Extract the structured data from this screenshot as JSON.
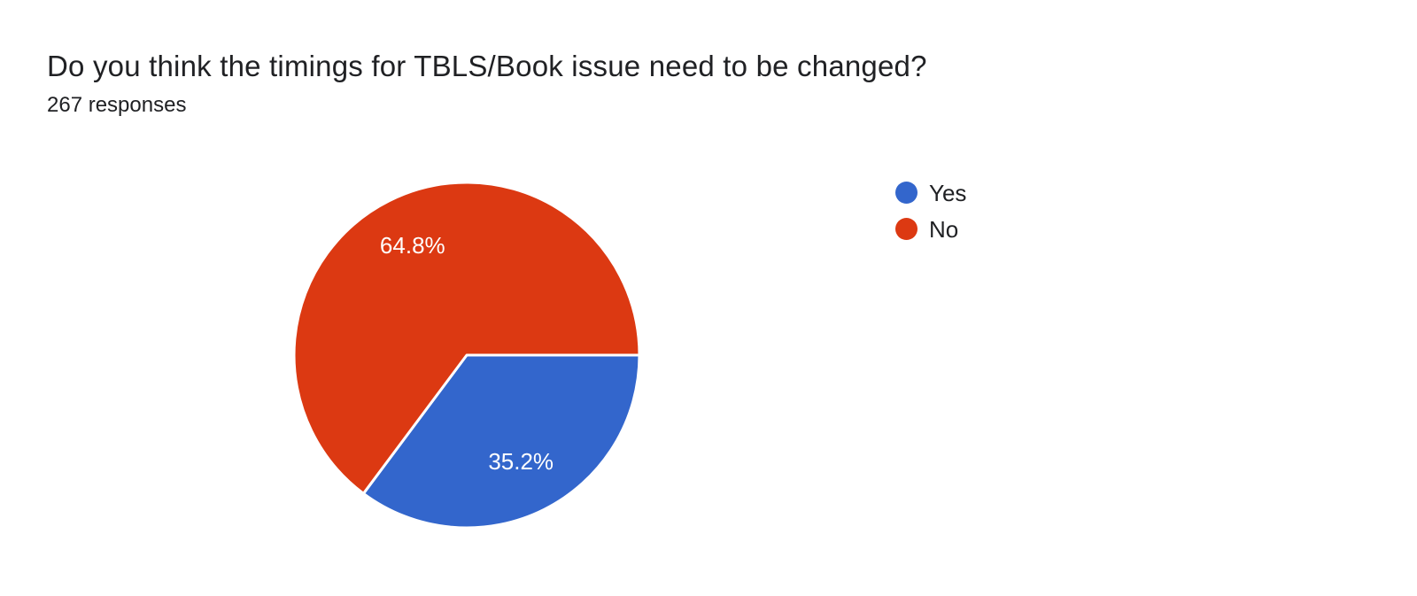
{
  "page": {
    "background_color": "#ffffff",
    "text_color": "#202124"
  },
  "header": {
    "title": "Do you think the timings for TBLS/Book issue need to be changed?",
    "responses": "267 responses"
  },
  "chart_data": {
    "type": "pie",
    "title": "Do you think the timings for TBLS/Book issue need to be changed?",
    "subtitle": "267 responses",
    "total_responses": 267,
    "categories": [
      "Yes",
      "No"
    ],
    "values": [
      35.2,
      64.8
    ],
    "slice_labels": [
      "35.2%",
      "64.8%"
    ],
    "colors": [
      "#3366cc",
      "#dc3912"
    ],
    "start_angle_deg": 0,
    "direction": "clockwise",
    "legend_position": "right",
    "slice_separator_color": "#ffffff",
    "label_color": "#ffffff"
  },
  "legend": {
    "items": [
      {
        "label": "Yes",
        "color": "#3366cc"
      },
      {
        "label": "No",
        "color": "#dc3912"
      }
    ]
  }
}
